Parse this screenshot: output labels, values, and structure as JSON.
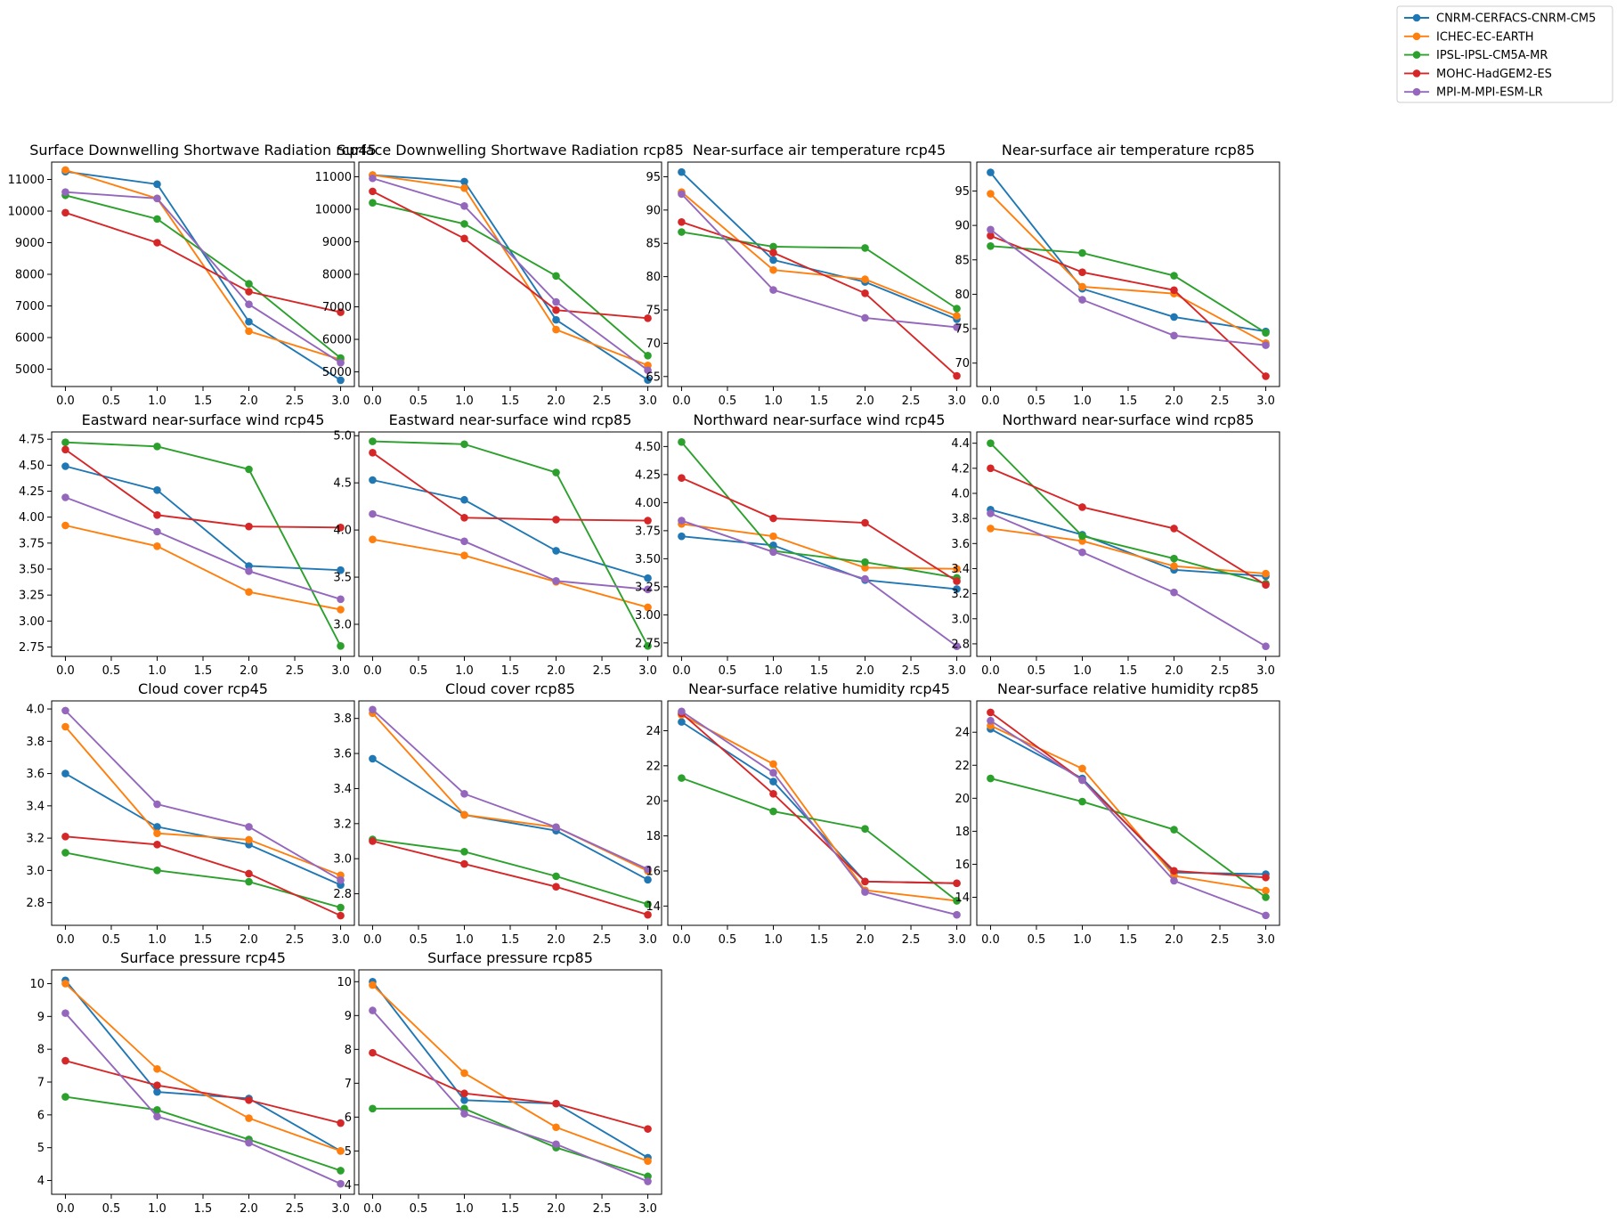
{
  "legend": {
    "placement": "upper-right",
    "entries": [
      {
        "name": "CNRM-CERFACS-CNRM-CM5",
        "color": "#1f77b4"
      },
      {
        "name": "ICHEC-EC-EARTH",
        "color": "#ff7f0e"
      },
      {
        "name": "IPSL-IPSL-CM5A-MR",
        "color": "#2ca02c"
      },
      {
        "name": "MOHC-HadGEM2-ES",
        "color": "#d62728"
      },
      {
        "name": "MPI-M-MPI-ESM-LR",
        "color": "#9467bd"
      }
    ]
  },
  "chart_data": [
    {
      "type": "line",
      "title": "Surface Downwelling Shortwave Radiation rcp45",
      "x": [
        0,
        1,
        2,
        3
      ],
      "xticks": [
        0,
        0.5,
        1,
        1.5,
        2,
        2.5,
        3
      ],
      "xlim": [
        -0.15,
        3.15
      ],
      "yticks": [
        5000,
        6000,
        7000,
        8000,
        9000,
        10000,
        11000
      ],
      "ylim": [
        4450,
        11550
      ],
      "grid": false,
      "series": [
        {
          "name": "CNRM-CERFACS-CNRM-CM5",
          "values": [
            11250,
            10850,
            6500,
            4650
          ]
        },
        {
          "name": "ICHEC-EC-EARTH",
          "values": [
            11300,
            10400,
            6200,
            5300
          ]
        },
        {
          "name": "IPSL-IPSL-CM5A-MR",
          "values": [
            10500,
            9750,
            7700,
            5350
          ]
        },
        {
          "name": "MOHC-HadGEM2-ES",
          "values": [
            9950,
            9000,
            7450,
            6800
          ]
        },
        {
          "name": "MPI-M-MPI-ESM-LR",
          "values": [
            10600,
            10400,
            7050,
            5200
          ]
        }
      ]
    },
    {
      "type": "line",
      "title": "Surface Downwelling Shortwave Radiation rcp85",
      "x": [
        0,
        1,
        2,
        3
      ],
      "xticks": [
        0,
        0.5,
        1,
        1.5,
        2,
        2.5,
        3
      ],
      "xlim": [
        -0.15,
        3.15
      ],
      "yticks": [
        5000,
        6000,
        7000,
        8000,
        9000,
        10000,
        11000
      ],
      "ylim": [
        4550,
        11450
      ],
      "grid": false,
      "series": [
        {
          "name": "CNRM-CERFACS-CNRM-CM5",
          "values": [
            11050,
            10850,
            6600,
            4750
          ]
        },
        {
          "name": "ICHEC-EC-EARTH",
          "values": [
            11050,
            10650,
            6300,
            5200
          ]
        },
        {
          "name": "IPSL-IPSL-CM5A-MR",
          "values": [
            10200,
            9550,
            7950,
            5500
          ]
        },
        {
          "name": "MOHC-HadGEM2-ES",
          "values": [
            10550,
            9100,
            6900,
            6650
          ]
        },
        {
          "name": "MPI-M-MPI-ESM-LR",
          "values": [
            10950,
            10100,
            7150,
            5050
          ]
        }
      ]
    },
    {
      "type": "line",
      "title": "Near-surface air temperature rcp45",
      "x": [
        0,
        1,
        2,
        3
      ],
      "xticks": [
        0,
        0.5,
        1,
        1.5,
        2,
        2.5,
        3
      ],
      "xlim": [
        -0.15,
        3.15
      ],
      "yticks": [
        65,
        70,
        75,
        80,
        85,
        90,
        95
      ],
      "ylim": [
        63.5,
        97.2
      ],
      "grid": false,
      "series": [
        {
          "name": "CNRM-CERFACS-CNRM-CM5",
          "values": [
            95.7,
            82.5,
            79.2,
            73.6
          ]
        },
        {
          "name": "ICHEC-EC-EARTH",
          "values": [
            92.7,
            81.0,
            79.6,
            74.1
          ]
        },
        {
          "name": "IPSL-IPSL-CM5A-MR",
          "values": [
            86.7,
            84.5,
            84.3,
            75.2
          ]
        },
        {
          "name": "MOHC-HadGEM2-ES",
          "values": [
            88.2,
            83.6,
            77.5,
            65.1
          ]
        },
        {
          "name": "MPI-M-MPI-ESM-LR",
          "values": [
            92.4,
            78.0,
            73.8,
            72.4
          ]
        }
      ]
    },
    {
      "type": "line",
      "title": "Near-surface air temperature rcp85",
      "x": [
        0,
        1,
        2,
        3
      ],
      "xticks": [
        0,
        0.5,
        1,
        1.5,
        2,
        2.5,
        3
      ],
      "xlim": [
        -0.15,
        3.15
      ],
      "yticks": [
        70,
        75,
        80,
        85,
        90,
        95
      ],
      "ylim": [
        66.6,
        99.2
      ],
      "grid": false,
      "series": [
        {
          "name": "CNRM-CERFACS-CNRM-CM5",
          "values": [
            97.7,
            80.8,
            76.7,
            74.6
          ]
        },
        {
          "name": "ICHEC-EC-EARTH",
          "values": [
            94.6,
            81.1,
            80.1,
            72.9
          ]
        },
        {
          "name": "IPSL-IPSL-CM5A-MR",
          "values": [
            87.0,
            86.0,
            82.7,
            74.4
          ]
        },
        {
          "name": "MOHC-HadGEM2-ES",
          "values": [
            88.5,
            83.2,
            80.6,
            68.1
          ]
        },
        {
          "name": "MPI-M-MPI-ESM-LR",
          "values": [
            89.4,
            79.2,
            74.0,
            72.6
          ]
        }
      ]
    },
    {
      "type": "line",
      "title": "Eastward near-surface wind rcp45",
      "x": [
        0,
        1,
        2,
        3
      ],
      "xticks": [
        0,
        0.5,
        1,
        1.5,
        2,
        2.5,
        3
      ],
      "xlim": [
        -0.15,
        3.15
      ],
      "yticks": [
        2.75,
        3.0,
        3.25,
        3.5,
        3.75,
        4.0,
        4.25,
        4.5,
        4.75
      ],
      "ylim": [
        2.66,
        4.82
      ],
      "grid": false,
      "series": [
        {
          "name": "CNRM-CERFACS-CNRM-CM5",
          "values": [
            4.49,
            4.26,
            3.53,
            3.49
          ]
        },
        {
          "name": "ICHEC-EC-EARTH",
          "values": [
            3.92,
            3.72,
            3.28,
            3.11
          ]
        },
        {
          "name": "IPSL-IPSL-CM5A-MR",
          "values": [
            4.72,
            4.68,
            4.46,
            2.76
          ]
        },
        {
          "name": "MOHC-HadGEM2-ES",
          "values": [
            4.65,
            4.02,
            3.91,
            3.9
          ]
        },
        {
          "name": "MPI-M-MPI-ESM-LR",
          "values": [
            4.19,
            3.86,
            3.48,
            3.21
          ]
        }
      ]
    },
    {
      "type": "line",
      "title": "Eastward near-surface wind rcp85",
      "x": [
        0,
        1,
        2,
        3
      ],
      "xticks": [
        0,
        0.5,
        1,
        1.5,
        2,
        2.5,
        3
      ],
      "xlim": [
        -0.15,
        3.15
      ],
      "yticks": [
        3.0,
        3.5,
        4.0,
        4.5,
        5.0
      ],
      "ylim": [
        2.66,
        5.04
      ],
      "grid": false,
      "series": [
        {
          "name": "CNRM-CERFACS-CNRM-CM5",
          "values": [
            4.53,
            4.32,
            3.78,
            3.49
          ]
        },
        {
          "name": "ICHEC-EC-EARTH",
          "values": [
            3.9,
            3.73,
            3.45,
            3.18
          ]
        },
        {
          "name": "IPSL-IPSL-CM5A-MR",
          "values": [
            4.94,
            4.91,
            4.61,
            2.77
          ]
        },
        {
          "name": "MOHC-HadGEM2-ES",
          "values": [
            4.82,
            4.13,
            4.11,
            4.1
          ]
        },
        {
          "name": "MPI-M-MPI-ESM-LR",
          "values": [
            4.17,
            3.88,
            3.46,
            3.37
          ]
        }
      ]
    },
    {
      "type": "line",
      "title": "Northward near-surface wind rcp45",
      "x": [
        0,
        1,
        2,
        3
      ],
      "xticks": [
        0,
        0.5,
        1,
        1.5,
        2,
        2.5,
        3
      ],
      "xlim": [
        -0.15,
        3.15
      ],
      "yticks": [
        2.75,
        3.0,
        3.25,
        3.5,
        3.75,
        4.0,
        4.25,
        4.5
      ],
      "ylim": [
        2.63,
        4.63
      ],
      "grid": false,
      "series": [
        {
          "name": "CNRM-CERFACS-CNRM-CM5",
          "values": [
            3.7,
            3.62,
            3.31,
            3.23
          ]
        },
        {
          "name": "ICHEC-EC-EARTH",
          "values": [
            3.81,
            3.7,
            3.42,
            3.41
          ]
        },
        {
          "name": "IPSL-IPSL-CM5A-MR",
          "values": [
            4.54,
            3.57,
            3.47,
            3.33
          ]
        },
        {
          "name": "MOHC-HadGEM2-ES",
          "values": [
            4.22,
            3.86,
            3.82,
            3.3
          ]
        },
        {
          "name": "MPI-M-MPI-ESM-LR",
          "values": [
            3.84,
            3.56,
            3.32,
            2.72
          ]
        }
      ]
    },
    {
      "type": "line",
      "title": "Northward near-surface wind rcp85",
      "x": [
        0,
        1,
        2,
        3
      ],
      "xticks": [
        0,
        0.5,
        1,
        1.5,
        2,
        2.5,
        3
      ],
      "xlim": [
        -0.15,
        3.15
      ],
      "yticks": [
        2.8,
        3.0,
        3.2,
        3.4,
        3.6,
        3.8,
        4.0,
        4.2,
        4.4
      ],
      "ylim": [
        2.7,
        4.49
      ],
      "grid": false,
      "series": [
        {
          "name": "CNRM-CERFACS-CNRM-CM5",
          "values": [
            3.87,
            3.67,
            3.39,
            3.34
          ]
        },
        {
          "name": "ICHEC-EC-EARTH",
          "values": [
            3.72,
            3.62,
            3.42,
            3.36
          ]
        },
        {
          "name": "IPSL-IPSL-CM5A-MR",
          "values": [
            4.4,
            3.66,
            3.48,
            3.28
          ]
        },
        {
          "name": "MOHC-HadGEM2-ES",
          "values": [
            4.2,
            3.89,
            3.72,
            3.27
          ]
        },
        {
          "name": "MPI-M-MPI-ESM-LR",
          "values": [
            3.84,
            3.53,
            3.21,
            2.78
          ]
        }
      ]
    },
    {
      "type": "line",
      "title": "Cloud cover rcp45",
      "x": [
        0,
        1,
        2,
        3
      ],
      "xticks": [
        0,
        0.5,
        1,
        1.5,
        2,
        2.5,
        3
      ],
      "xlim": [
        -0.15,
        3.15
      ],
      "yticks": [
        2.8,
        3.0,
        3.2,
        3.4,
        3.6,
        3.8,
        4.0
      ],
      "ylim": [
        2.66,
        4.05
      ],
      "grid": false,
      "series": [
        {
          "name": "CNRM-CERFACS-CNRM-CM5",
          "values": [
            3.6,
            3.27,
            3.16,
            2.91
          ]
        },
        {
          "name": "ICHEC-EC-EARTH",
          "values": [
            3.89,
            3.23,
            3.19,
            2.97
          ]
        },
        {
          "name": "IPSL-IPSL-CM5A-MR",
          "values": [
            3.11,
            3.0,
            2.93,
            2.77
          ]
        },
        {
          "name": "MOHC-HadGEM2-ES",
          "values": [
            3.21,
            3.16,
            2.98,
            2.72
          ]
        },
        {
          "name": "MPI-M-MPI-ESM-LR",
          "values": [
            3.99,
            3.41,
            3.27,
            2.94
          ]
        }
      ]
    },
    {
      "type": "line",
      "title": "Cloud cover rcp85",
      "x": [
        0,
        1,
        2,
        3
      ],
      "xticks": [
        0,
        0.5,
        1,
        1.5,
        2,
        2.5,
        3
      ],
      "xlim": [
        -0.15,
        3.15
      ],
      "yticks": [
        2.8,
        3.0,
        3.2,
        3.4,
        3.6,
        3.8
      ],
      "ylim": [
        2.62,
        3.9
      ],
      "grid": false,
      "series": [
        {
          "name": "CNRM-CERFACS-CNRM-CM5",
          "values": [
            3.57,
            3.25,
            3.16,
            2.88
          ]
        },
        {
          "name": "ICHEC-EC-EARTH",
          "values": [
            3.83,
            3.25,
            3.18,
            2.93
          ]
        },
        {
          "name": "IPSL-IPSL-CM5A-MR",
          "values": [
            3.11,
            3.04,
            2.9,
            2.74
          ]
        },
        {
          "name": "MOHC-HadGEM2-ES",
          "values": [
            3.1,
            2.97,
            2.84,
            2.68
          ]
        },
        {
          "name": "MPI-M-MPI-ESM-LR",
          "values": [
            3.85,
            3.37,
            3.18,
            2.94
          ]
        }
      ]
    },
    {
      "type": "line",
      "title": "Near-surface relative humidity rcp45",
      "x": [
        0,
        1,
        2,
        3
      ],
      "xticks": [
        0,
        0.5,
        1,
        1.5,
        2,
        2.5,
        3
      ],
      "xlim": [
        -0.15,
        3.15
      ],
      "yticks": [
        14,
        16,
        18,
        20,
        22,
        24
      ],
      "ylim": [
        12.9,
        25.7
      ],
      "grid": false,
      "series": [
        {
          "name": "CNRM-CERFACS-CNRM-CM5",
          "values": [
            24.5,
            21.1,
            15.4,
            15.3
          ]
        },
        {
          "name": "ICHEC-EC-EARTH",
          "values": [
            24.9,
            22.1,
            14.9,
            14.3
          ]
        },
        {
          "name": "IPSL-IPSL-CM5A-MR",
          "values": [
            21.3,
            19.4,
            18.4,
            14.3
          ]
        },
        {
          "name": "MOHC-HadGEM2-ES",
          "values": [
            25.0,
            20.4,
            15.4,
            15.3
          ]
        },
        {
          "name": "MPI-M-MPI-ESM-LR",
          "values": [
            25.1,
            21.6,
            14.8,
            13.5
          ]
        }
      ]
    },
    {
      "type": "line",
      "title": "Near-surface relative humidity rcp85",
      "x": [
        0,
        1,
        2,
        3
      ],
      "xticks": [
        0,
        0.5,
        1,
        1.5,
        2,
        2.5,
        3
      ],
      "xlim": [
        -0.15,
        3.15
      ],
      "yticks": [
        14,
        16,
        18,
        20,
        22,
        24
      ],
      "ylim": [
        12.3,
        25.9
      ],
      "grid": false,
      "series": [
        {
          "name": "CNRM-CERFACS-CNRM-CM5",
          "values": [
            24.2,
            21.2,
            15.5,
            15.4
          ]
        },
        {
          "name": "ICHEC-EC-EARTH",
          "values": [
            24.4,
            21.8,
            15.3,
            14.4
          ]
        },
        {
          "name": "IPSL-IPSL-CM5A-MR",
          "values": [
            21.2,
            19.8,
            18.1,
            14.0
          ]
        },
        {
          "name": "MOHC-HadGEM2-ES",
          "values": [
            25.2,
            21.1,
            15.6,
            15.2
          ]
        },
        {
          "name": "MPI-M-MPI-ESM-LR",
          "values": [
            24.7,
            21.1,
            15.0,
            12.9
          ]
        }
      ]
    },
    {
      "type": "line",
      "title": "Surface pressure rcp45",
      "x": [
        0,
        1,
        2,
        3
      ],
      "xticks": [
        0,
        0.5,
        1,
        1.5,
        2,
        2.5,
        3
      ],
      "xlim": [
        -0.15,
        3.15
      ],
      "yticks": [
        4,
        5,
        6,
        7,
        8,
        9,
        10
      ],
      "ylim": [
        3.58,
        10.42
      ],
      "grid": false,
      "series": [
        {
          "name": "CNRM-CERFACS-CNRM-CM5",
          "values": [
            10.1,
            6.7,
            6.5,
            4.9
          ]
        },
        {
          "name": "ICHEC-EC-EARTH",
          "values": [
            10.0,
            7.4,
            5.9,
            4.9
          ]
        },
        {
          "name": "IPSL-IPSL-CM5A-MR",
          "values": [
            6.55,
            6.15,
            5.25,
            4.3
          ]
        },
        {
          "name": "MOHC-HadGEM2-ES",
          "values": [
            7.65,
            6.9,
            6.45,
            5.75
          ]
        },
        {
          "name": "MPI-M-MPI-ESM-LR",
          "values": [
            9.1,
            5.95,
            5.15,
            3.9
          ]
        }
      ]
    },
    {
      "type": "line",
      "title": "Surface pressure rcp85",
      "x": [
        0,
        1,
        2,
        3
      ],
      "xticks": [
        0,
        0.5,
        1,
        1.5,
        2,
        2.5,
        3
      ],
      "xlim": [
        -0.15,
        3.15
      ],
      "yticks": [
        4,
        5,
        6,
        7,
        8,
        9,
        10
      ],
      "ylim": [
        3.72,
        10.35
      ],
      "grid": false,
      "series": [
        {
          "name": "CNRM-CERFACS-CNRM-CM5",
          "values": [
            10.0,
            6.5,
            6.4,
            4.8
          ]
        },
        {
          "name": "ICHEC-EC-EARTH",
          "values": [
            9.9,
            7.3,
            5.7,
            4.7
          ]
        },
        {
          "name": "IPSL-IPSL-CM5A-MR",
          "values": [
            6.25,
            6.25,
            5.1,
            4.25
          ]
        },
        {
          "name": "MOHC-HadGEM2-ES",
          "values": [
            7.9,
            6.7,
            6.4,
            5.65
          ]
        },
        {
          "name": "MPI-M-MPI-ESM-LR",
          "values": [
            9.15,
            6.1,
            5.2,
            4.1
          ]
        }
      ]
    }
  ]
}
